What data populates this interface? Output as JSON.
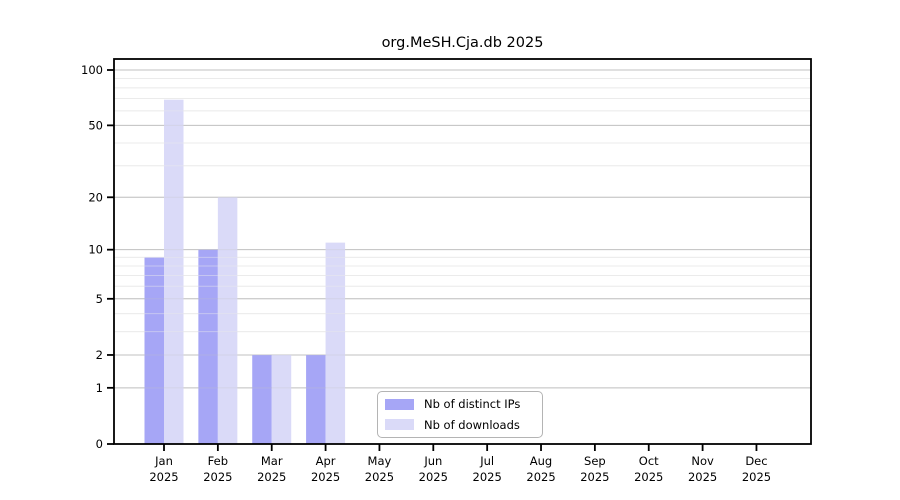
{
  "chart_data": {
    "type": "bar",
    "title": "org.MeSH.Cja.db 2025",
    "categories": [
      "Jan",
      "Feb",
      "Mar",
      "Apr",
      "May",
      "Jun",
      "Jul",
      "Aug",
      "Sep",
      "Oct",
      "Nov",
      "Dec"
    ],
    "category_year": "2025",
    "series": [
      {
        "name": "Nb of distinct IPs",
        "color": "#a6a6f6",
        "values": [
          9,
          10,
          2,
          2,
          0,
          0,
          0,
          0,
          0,
          0,
          0,
          0
        ]
      },
      {
        "name": "Nb of downloads",
        "color": "#dadaf8",
        "values": [
          69,
          20,
          2,
          11,
          0,
          0,
          0,
          0,
          0,
          0,
          0,
          0
        ]
      }
    ],
    "y_scale": "log10(x+1)",
    "ylim": [
      0,
      100
    ],
    "y_ticks": [
      0,
      1,
      2,
      5,
      10,
      20,
      50,
      100
    ],
    "y_minor_gridlines": [
      3,
      4,
      6,
      7,
      8,
      9,
      30,
      40,
      60,
      70,
      80,
      90
    ],
    "grid": true,
    "legend_position": "lower center"
  },
  "colors": {
    "axis": "#000000",
    "major_grid": "#c2c2c2",
    "minor_grid": "#ececec",
    "legend_border": "#b4b4b4",
    "background": "#ffffff"
  }
}
